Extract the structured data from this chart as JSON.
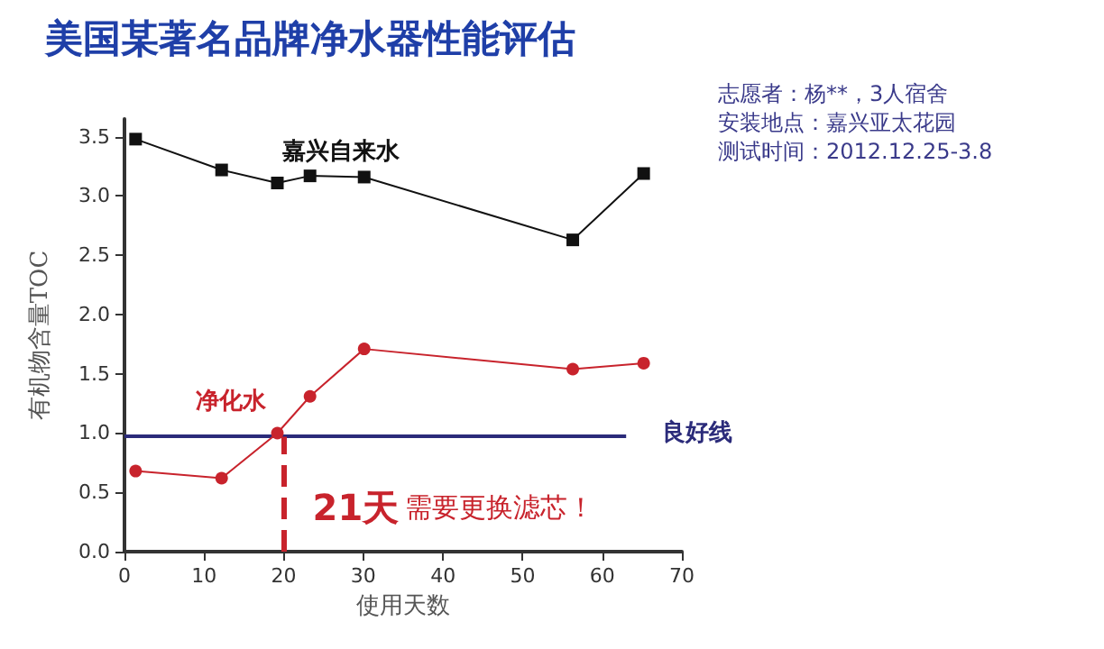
{
  "chart_data": {
    "type": "line",
    "title": "美国某著名品牌净水器性能评估",
    "xlabel": "使用天数",
    "ylabel": "有机物含量TOC",
    "x": [
      1.4,
      12.2,
      19.2,
      23.3,
      30.1,
      56.3,
      65.2
    ],
    "series": [
      {
        "name": "嘉兴自来水",
        "color": "#111111",
        "marker": "square",
        "values": [
          3.48,
          3.22,
          3.11,
          3.17,
          3.16,
          2.63,
          3.19
        ]
      },
      {
        "name": "净化水",
        "color": "#c8232c",
        "marker": "circle",
        "values": [
          0.68,
          0.62,
          1.0,
          1.31,
          1.71,
          1.54,
          1.59
        ]
      }
    ],
    "xlim": [
      0,
      70
    ],
    "xticks": [
      0,
      10,
      20,
      30,
      40,
      50,
      60,
      70
    ],
    "ylim": [
      0,
      3.65
    ],
    "yticks": [
      {
        "value": 0,
        "label": "0.0"
      },
      {
        "value": 0.5,
        "label": "0.5"
      },
      {
        "value": 1,
        "label": "1.0"
      },
      {
        "value": 1.5,
        "label": "1.5"
      },
      {
        "value": 2,
        "label": "2.0"
      },
      {
        "value": 2.5,
        "label": "2.5"
      },
      {
        "value": 3,
        "label": "3.0"
      },
      {
        "value": 3.5,
        "label": "3.5"
      }
    ],
    "ref_lines": [
      {
        "axis": "y",
        "value": 0.97,
        "label": "良好线",
        "color": "#2b2b7a",
        "line_style": "solid"
      },
      {
        "axis": "x",
        "value": 20,
        "label": "21天 需要更换滤芯！",
        "color": "#c8232c",
        "line_style": "dashed"
      }
    ],
    "annotations": [
      "志愿者：杨**，3人宿舍",
      "安装地点：嘉兴亚太花园",
      "测试时间：2012.12.25-3.8"
    ],
    "grid": false,
    "legend": false,
    "line_style": "solid"
  }
}
